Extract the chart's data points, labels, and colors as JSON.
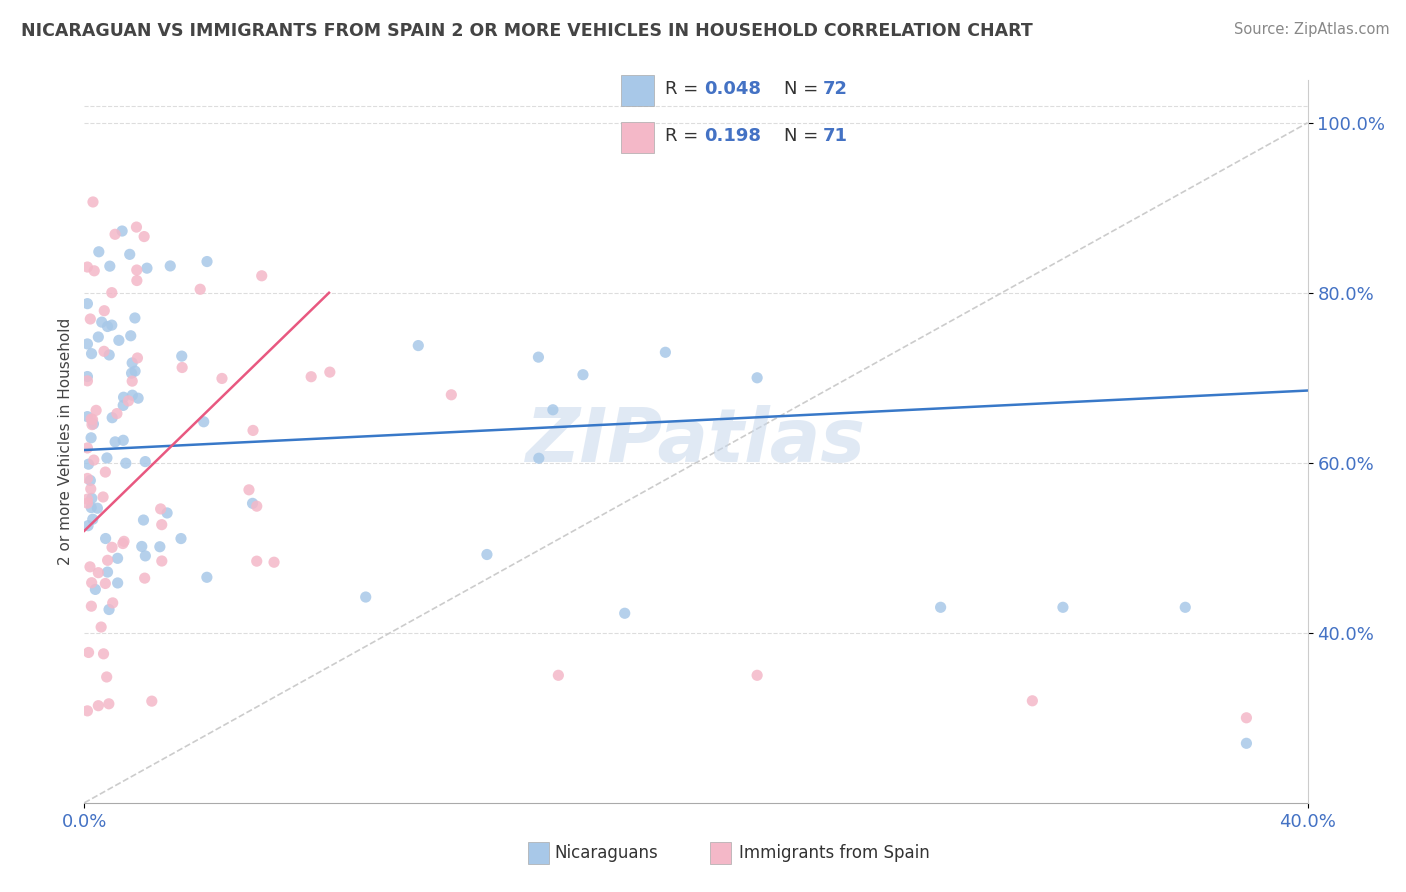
{
  "title": "NICARAGUAN VS IMMIGRANTS FROM SPAIN 2 OR MORE VEHICLES IN HOUSEHOLD CORRELATION CHART",
  "source": "Source: ZipAtlas.com",
  "ylabel_label": "2 or more Vehicles in Household",
  "legend_label1": "Nicaraguans",
  "legend_label2": "Immigrants from Spain",
  "legend_r1": "0.048",
  "legend_n1": "72",
  "legend_r2": "0.198",
  "legend_n2": "71",
  "blue_color": "#a8c8e8",
  "pink_color": "#f4b8c8",
  "blue_line_color": "#3878c8",
  "pink_line_color": "#e85880",
  "watermark": "ZIPatlas",
  "xlim": [
    0.0,
    0.4
  ],
  "ylim": [
    0.2,
    1.05
  ],
  "yticks": [
    0.4,
    0.6,
    0.8,
    1.0
  ],
  "ytick_labels": [
    "40.0%",
    "60.0%",
    "80.0%",
    "100.0%"
  ],
  "xtick_labels": [
    "0.0%",
    "40.0%"
  ],
  "background_color": "#ffffff",
  "tick_color": "#4472c4",
  "title_color": "#444444",
  "source_color": "#888888"
}
